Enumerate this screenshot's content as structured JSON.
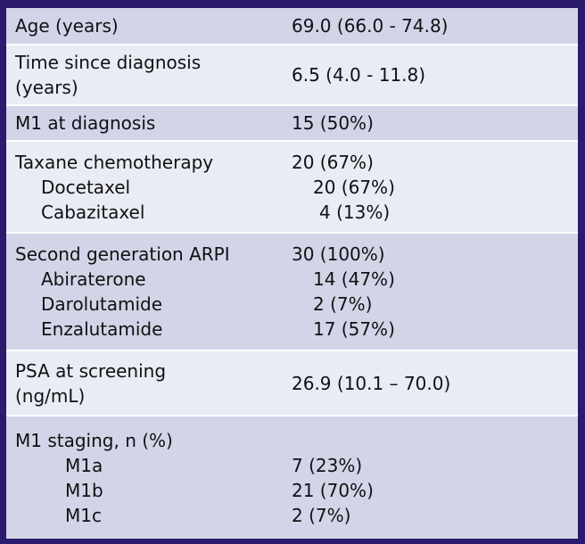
{
  "rows": [
    {
      "label": "Age (years)",
      "value": "69.0 (66.0 - 74.8)"
    },
    {
      "label": [
        "Time since diagnosis",
        "(years)"
      ],
      "value": "6.5 (4.0 - 11.8)"
    },
    {
      "label": "M1 at diagnosis",
      "value": "15 (50%)"
    },
    {
      "label": "Taxane chemotherapy",
      "value": "20 (67%)",
      "subs": [
        {
          "label": "Docetaxel",
          "value": "20 (67%)"
        },
        {
          "label": "Cabazitaxel",
          "value": "4 (13%)"
        }
      ]
    },
    {
      "label": "Second generation ARPI",
      "value": "30 (100%)",
      "subs": [
        {
          "label": "Abiraterone",
          "value": "14 (47%)"
        },
        {
          "label": "Darolutamide",
          "value": "2 (7%)"
        },
        {
          "label": "Enzalutamide",
          "value": "17 (57%)"
        }
      ]
    },
    {
      "label": [
        "PSA at screening",
        "(ng/mL)"
      ],
      "value": "26.9 (10.1 – 70.0)"
    },
    {
      "label": "M1 staging, n (%)",
      "value": "",
      "subs": [
        {
          "label": "M1a",
          "value": "7 (23%)"
        },
        {
          "label": "M1b",
          "value": "21 (70%)"
        },
        {
          "label": "M1c",
          "value": "2 (7%)"
        }
      ]
    }
  ]
}
